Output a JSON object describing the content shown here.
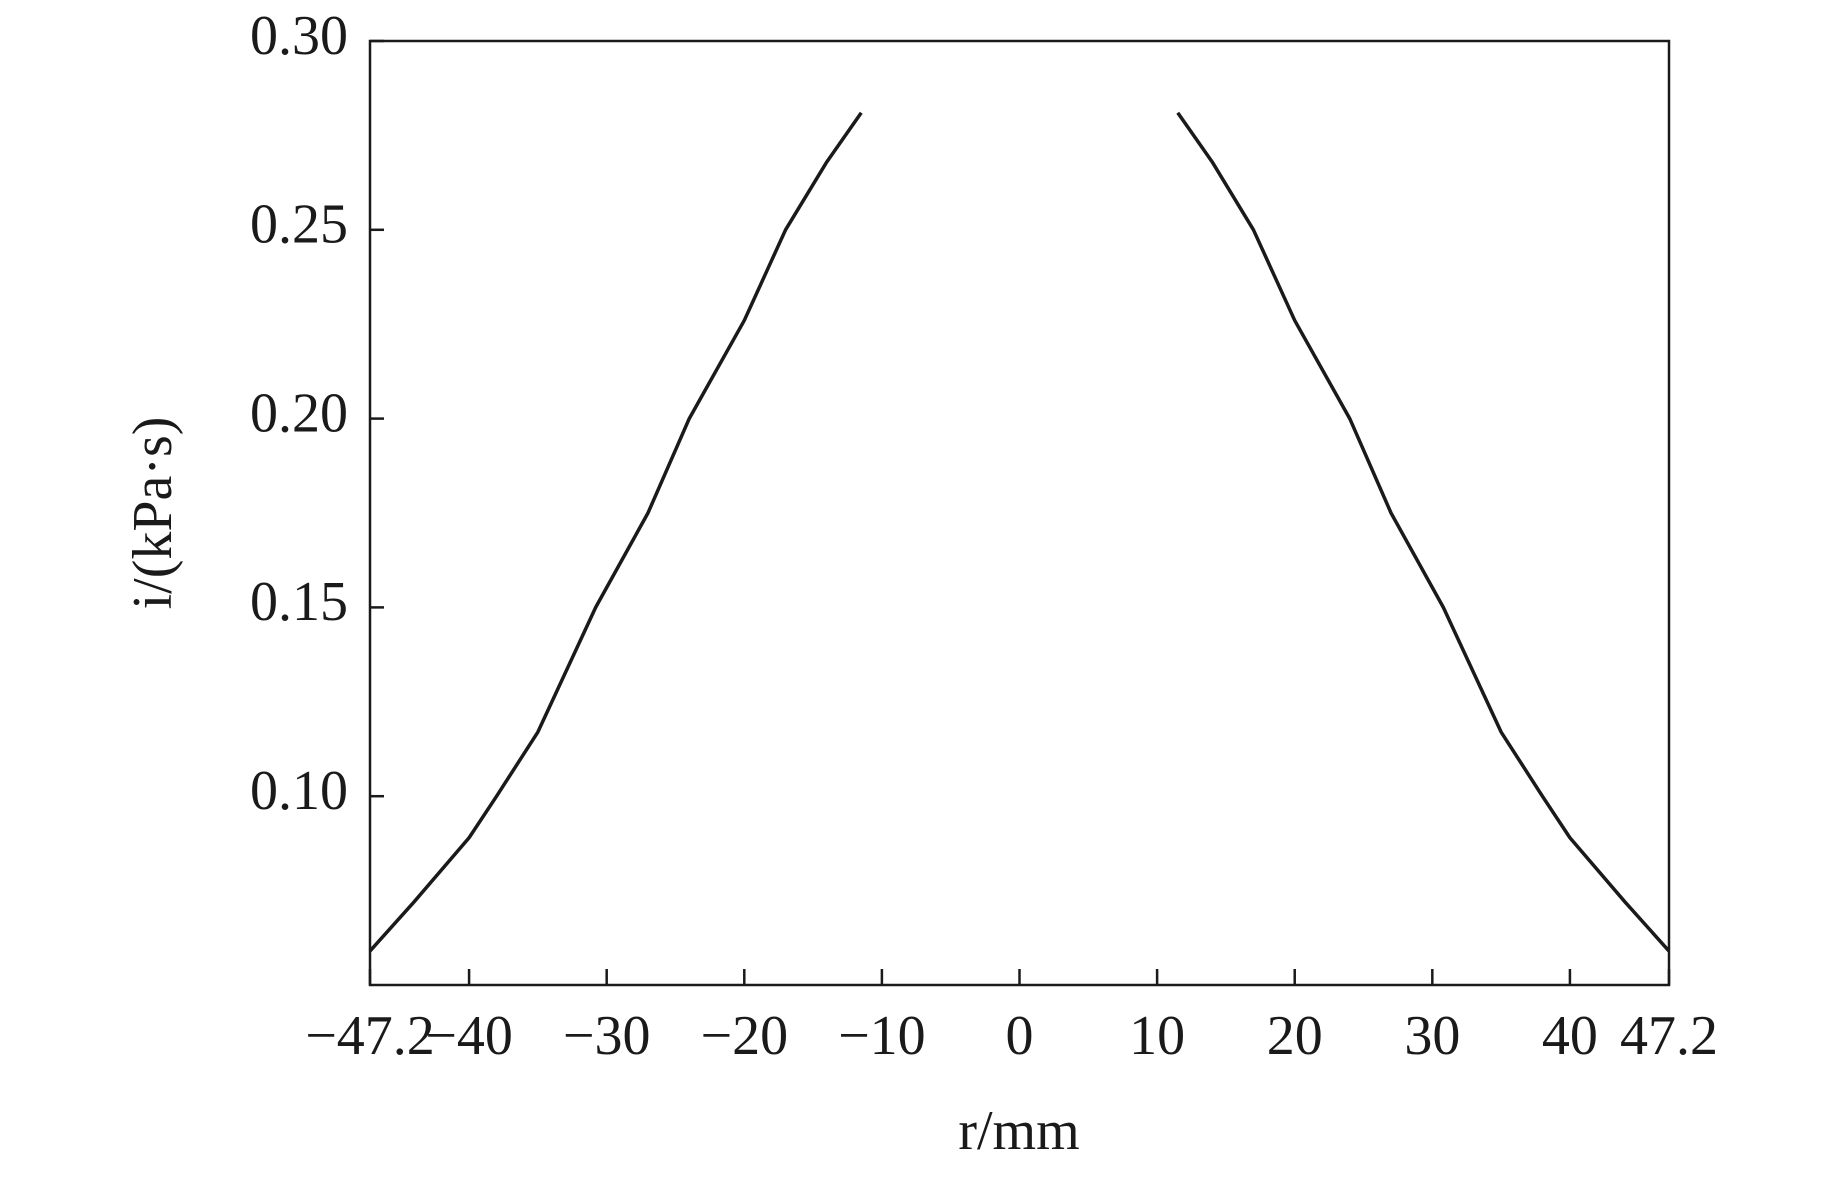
{
  "chart_data": {
    "type": "line",
    "xlabel": "r/mm",
    "ylabel": "i/(kPa·s)",
    "x": [
      -47.2,
      -44,
      -40,
      -38,
      -35,
      -30.8,
      -27,
      -24,
      -20,
      -17,
      -14,
      -11.5,
      null,
      11.5,
      14,
      17,
      20,
      24,
      27,
      30.8,
      35,
      38,
      40,
      44,
      47.2
    ],
    "series": [
      {
        "color": "#1a1a1a",
        "values": [
          0.059,
          0.072,
          0.089,
          0.1,
          0.117,
          0.15,
          0.175,
          0.2,
          0.226,
          0.25,
          0.268,
          0.281,
          null,
          0.281,
          0.268,
          0.25,
          0.226,
          0.2,
          0.175,
          0.15,
          0.117,
          0.1,
          0.089,
          0.072,
          0.059
        ]
      }
    ],
    "xlim": [
      -47.2,
      47.2
    ],
    "xticks": [
      {
        "value": -47.2,
        "label": "−47.2"
      },
      {
        "value": -40,
        "label": "−40"
      },
      {
        "value": -30,
        "label": "−30"
      },
      {
        "value": -20,
        "label": "−20"
      },
      {
        "value": -10,
        "label": "−10"
      },
      0,
      10,
      20,
      30,
      40,
      47.2
    ],
    "ylim": [
      0.05,
      0.3
    ],
    "yticks": [
      {
        "value": 0.1,
        "label": "0.10"
      },
      0.15,
      {
        "value": 0.2,
        "label": "0.20"
      },
      0.25,
      {
        "value": 0.3,
        "label": "0.30"
      }
    ],
    "grid": false
  }
}
